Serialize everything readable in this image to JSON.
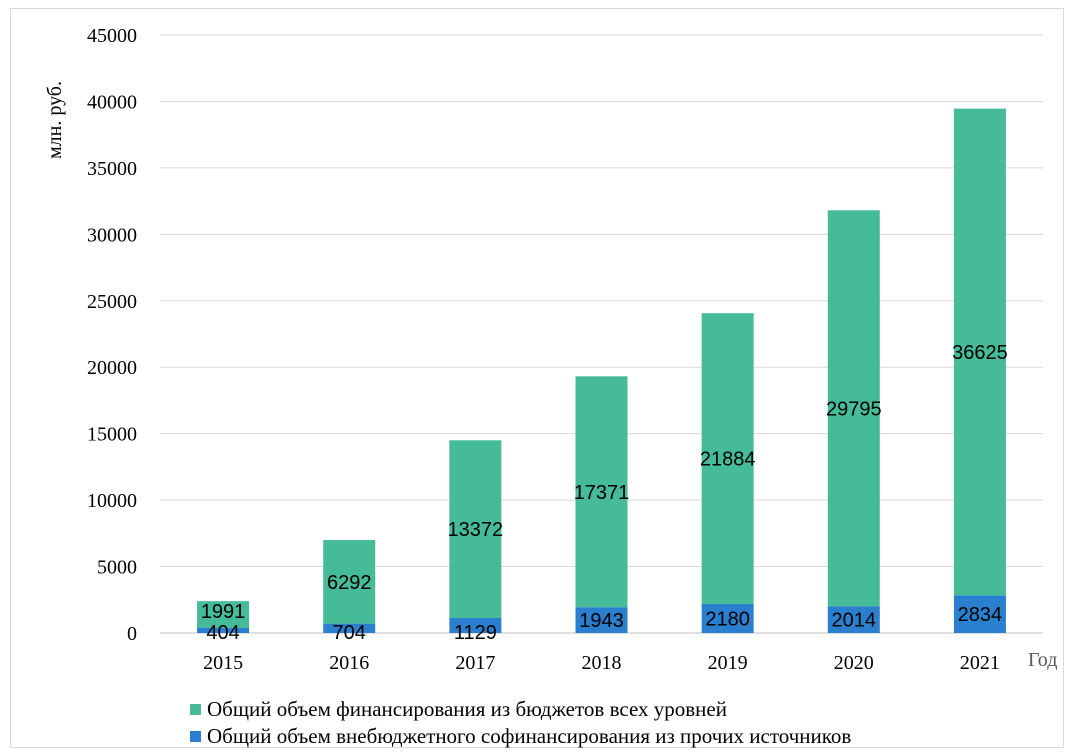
{
  "chart_data": {
    "type": "bar",
    "stacked": true,
    "categories": [
      "2015",
      "2016",
      "2017",
      "2018",
      "2019",
      "2020",
      "2021"
    ],
    "series": [
      {
        "name": "Общий объем внебюджетного софинансирования из прочих источников",
        "values": [
          404,
          704,
          1129,
          1943,
          2180,
          2014,
          2834
        ],
        "color": "#2a7fcf"
      },
      {
        "name": "Общий объем финансирования из бюджетов всех уровней",
        "values": [
          1991,
          6292,
          13372,
          17371,
          21884,
          29795,
          36625
        ],
        "color": "#45bb97"
      }
    ],
    "xlabel": "Год",
    "ylabel": "млн. руб.",
    "ylim": [
      0,
      45000
    ],
    "yticks": [
      "0",
      "5000",
      "10000",
      "15000",
      "20000",
      "25000",
      "30000",
      "35000",
      "40000",
      "45000"
    ],
    "grid": true,
    "legend_position": "bottom"
  }
}
